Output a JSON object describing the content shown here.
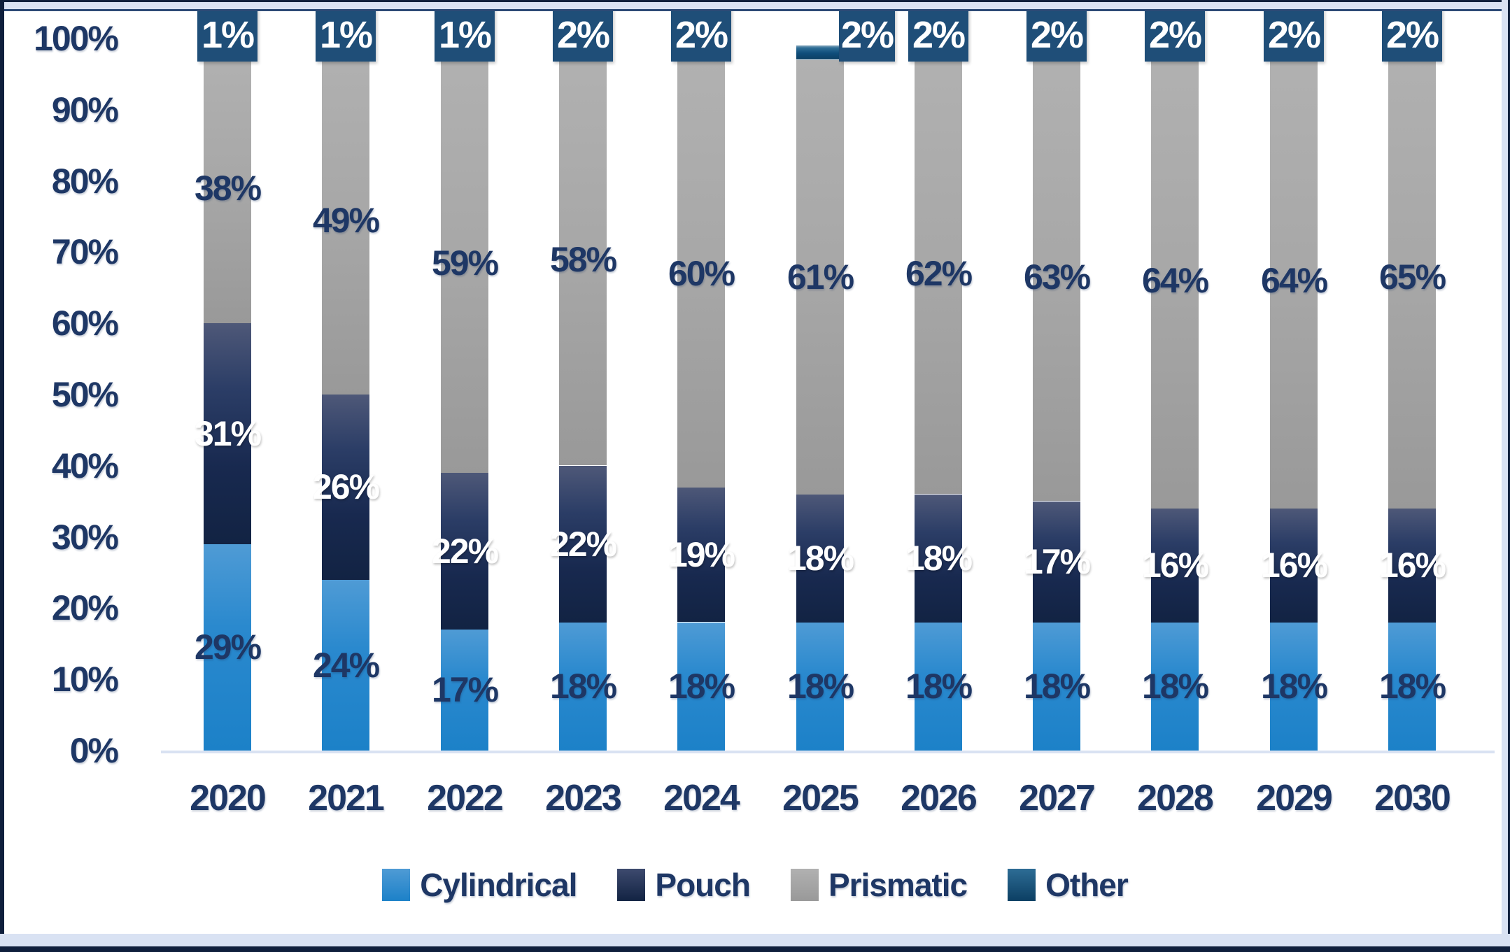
{
  "chart_data": {
    "type": "bar",
    "stacked": true,
    "title": "",
    "categories": [
      "2020",
      "2021",
      "2022",
      "2023",
      "2024",
      "2025",
      "2026",
      "2027",
      "2028",
      "2029",
      "2030"
    ],
    "series": [
      {
        "name": "Cylindrical",
        "color": "#2A89CE",
        "label_style": "navy-outside-center",
        "values": [
          29,
          24,
          17,
          18,
          18,
          18,
          18,
          18,
          18,
          18,
          18
        ],
        "labels": [
          "29%",
          "24%",
          "17%",
          "18%",
          "18%",
          "18%",
          "18%",
          "18%",
          "18%",
          "18%",
          "18%"
        ]
      },
      {
        "name": "Pouch",
        "color": "#18294F",
        "label_style": "white-inside-center",
        "values": [
          31,
          26,
          22,
          22,
          19,
          18,
          18,
          17,
          16,
          16,
          16
        ],
        "labels": [
          "31%",
          "26%",
          "22%",
          "22%",
          "19%",
          "18%",
          "18%",
          "17%",
          "16%",
          "16%",
          "16%"
        ]
      },
      {
        "name": "Prismatic",
        "color": "#A7A7A7",
        "label_style": "navy-outside-center",
        "values": [
          38,
          49,
          59,
          58,
          60,
          61,
          62,
          63,
          64,
          64,
          65
        ],
        "labels": [
          "38%",
          "49%",
          "59%",
          "58%",
          "60%",
          "61%",
          "62%",
          "63%",
          "64%",
          "64%",
          "65%"
        ]
      },
      {
        "name": "Other",
        "color": "#0F4E7B",
        "label_style": "white-in-navy-box",
        "values": [
          1,
          1,
          1,
          2,
          2,
          2,
          2,
          2,
          2,
          2,
          2
        ],
        "labels": [
          "1%",
          "1%",
          "1%",
          "2%",
          "2%",
          "2%",
          "2%",
          "2%",
          "2%",
          "2%",
          "2%"
        ]
      }
    ],
    "y_axis": {
      "min": 0,
      "max": 100,
      "ticks": [
        "0%",
        "10%",
        "20%",
        "30%",
        "40%",
        "50%",
        "60%",
        "70%",
        "80%",
        "90%",
        "100%"
      ],
      "gridlines": false
    },
    "legend": {
      "position": "bottom",
      "entries": [
        "Cylindrical",
        "Pouch",
        "Prismatic",
        "Other"
      ]
    },
    "colors": {
      "label_text_navy": "#1E3765",
      "label_text_white": "#FFFFFF",
      "other_label_box": "#1F4E78",
      "baseline_line": "#D9E2F2",
      "frame_inner": "#D9E2F3",
      "frame_outer": "#0F1F3C"
    }
  }
}
